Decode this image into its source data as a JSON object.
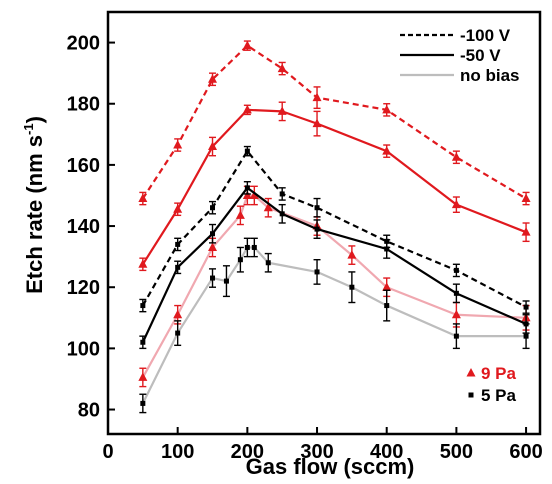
{
  "chart_data": {
    "type": "line",
    "xlabel": "Gas flow (sccm)",
    "ylabel": "Etch rate (nm s",
    "ylabel_sup": "-1",
    "ylabel_close": ")",
    "xlim": [
      0,
      620
    ],
    "ylim": [
      72,
      210
    ],
    "xticks": [
      0,
      100,
      200,
      300,
      400,
      500,
      600
    ],
    "yticks": [
      80,
      100,
      120,
      140,
      160,
      180,
      200
    ],
    "grid": false,
    "legend_position": "top-right",
    "legend_bias": [
      {
        "label": "-100 V",
        "style": "dashed",
        "color": "#000000"
      },
      {
        "label": "-50 V",
        "style": "solid",
        "color": "#000000"
      },
      {
        "label": "no bias",
        "style": "solid",
        "color": "#bdbdbd"
      }
    ],
    "legend_pressure": [
      {
        "label": "9 Pa",
        "marker": "triangle",
        "color": "#e0191e"
      },
      {
        "label": "5 Pa",
        "marker": "square",
        "color": "#000000"
      }
    ],
    "series": [
      {
        "pressure": "9 Pa",
        "bias": "-100 V",
        "color": "#e0191e",
        "style": "dashed",
        "marker": "triangle",
        "x": [
          50,
          100,
          150,
          200,
          250,
          300,
          400,
          500,
          600
        ],
        "y": [
          149,
          166.5,
          188,
          199,
          191.5,
          182,
          178,
          162.5,
          149
        ],
        "err": [
          2,
          2,
          2,
          1.5,
          2,
          3.5,
          2,
          2,
          2
        ]
      },
      {
        "pressure": "9 Pa",
        "bias": "-50 V",
        "color": "#e0191e",
        "style": "solid",
        "marker": "triangle",
        "x": [
          50,
          100,
          150,
          200,
          250,
          300,
          400,
          500,
          600
        ],
        "y": [
          127.5,
          145.5,
          166,
          178,
          177.5,
          173.5,
          164.5,
          147,
          138
        ],
        "err": [
          2,
          2,
          3,
          1.5,
          3,
          4,
          2,
          2.5,
          3
        ]
      },
      {
        "pressure": "9 Pa",
        "bias": "no bias",
        "color": "#f0a8b0",
        "style": "solid",
        "marker": "triangle",
        "x": [
          50,
          100,
          150,
          190,
          200,
          210,
          230,
          300,
          350,
          400,
          500,
          600
        ],
        "y": [
          90.5,
          111,
          133,
          143.5,
          150,
          150,
          146,
          140,
          130.5,
          120,
          111,
          110
        ],
        "err": [
          3,
          3,
          3,
          3,
          3,
          3,
          3,
          3,
          3,
          3,
          4,
          4
        ]
      },
      {
        "pressure": "5 Pa",
        "bias": "-100 V",
        "color": "#000000",
        "style": "dashed",
        "marker": "square",
        "x": [
          50,
          100,
          150,
          200,
          250,
          300,
          400,
          500,
          600
        ],
        "y": [
          114,
          134,
          146,
          164.5,
          150.5,
          146,
          135,
          125.5,
          113.5
        ],
        "err": [
          2,
          2,
          2,
          1.5,
          2,
          3,
          2,
          2,
          2
        ]
      },
      {
        "pressure": "5 Pa",
        "bias": "-50 V",
        "color": "#000000",
        "style": "solid",
        "marker": "square",
        "x": [
          50,
          100,
          150,
          200,
          250,
          300,
          400,
          500,
          600
        ],
        "y": [
          102,
          126.5,
          137.5,
          152.5,
          144,
          139,
          132.5,
          118,
          108
        ],
        "err": [
          2,
          2,
          3,
          2,
          3,
          3,
          3,
          3,
          3
        ]
      },
      {
        "pressure": "5 Pa",
        "bias": "no bias",
        "color": "#bdbdbd",
        "style": "solid",
        "marker": "square",
        "x": [
          50,
          100,
          150,
          170,
          190,
          200,
          210,
          230,
          300,
          350,
          400,
          500,
          600
        ],
        "y": [
          82,
          105,
          123,
          122,
          129,
          133,
          133,
          128,
          125,
          120,
          114,
          104,
          104
        ],
        "err": [
          3,
          4,
          3,
          5,
          4,
          3,
          3,
          3,
          4,
          5,
          5,
          4,
          4
        ]
      }
    ]
  }
}
